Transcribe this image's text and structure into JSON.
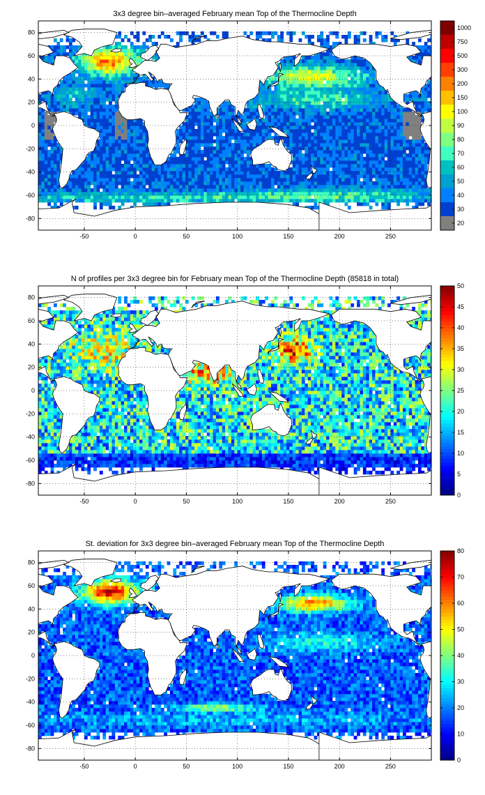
{
  "chart_data": [
    {
      "type": "heatmap",
      "title": "3x3 degree bin–averaged February mean Top of the Thermocline Depth",
      "xlim": [
        -95,
        290
      ],
      "ylim": [
        -90,
        90
      ],
      "xticks": [
        "-50",
        "0",
        "50",
        "100",
        "150",
        "200",
        "250"
      ],
      "xtick_values": [
        -50,
        0,
        50,
        100,
        150,
        200,
        250
      ],
      "yticks": [
        "80",
        "60",
        "40",
        "20",
        "0",
        "-20",
        "-40",
        "-60",
        "-80"
      ],
      "ytick_values": [
        80,
        60,
        40,
        20,
        0,
        -20,
        -40,
        -60,
        -80
      ],
      "grid": "dotted",
      "colorbar": {
        "labels": [
          "1000",
          "750",
          "500",
          "300",
          "200",
          "150",
          "100",
          "90",
          "80",
          "70",
          "60",
          "50",
          "40",
          "30",
          "20"
        ],
        "colors": [
          "#800000",
          "#c00000",
          "#ff0000",
          "#ff4000",
          "#ff8000",
          "#ffc000",
          "#ffff00",
          "#c0ff40",
          "#80ff80",
          "#40ffc0",
          "#00c0c0",
          "#00a0d0",
          "#0080ff",
          "#0040d0",
          "#808080"
        ]
      },
      "field": "depth"
    },
    {
      "type": "heatmap",
      "title": "N of profiles per 3x3 degree bin for February mean Top of the Thermocline Depth  (85818 in total)",
      "xlim": [
        -95,
        290
      ],
      "ylim": [
        -90,
        90
      ],
      "xticks": [
        "-50",
        "0",
        "50",
        "100",
        "150",
        "200",
        "250"
      ],
      "xtick_values": [
        -50,
        0,
        50,
        100,
        150,
        200,
        250
      ],
      "yticks": [
        "80",
        "60",
        "40",
        "20",
        "0",
        "-20",
        "-40",
        "-60",
        "-80"
      ],
      "ytick_values": [
        80,
        60,
        40,
        20,
        0,
        -20,
        -40,
        -60,
        -80
      ],
      "grid": "dotted",
      "colorbar": {
        "min": 0,
        "max": 50,
        "labels": [
          "50",
          "45",
          "40",
          "35",
          "30",
          "25",
          "20",
          "15",
          "10",
          "5",
          "0"
        ],
        "label_values": [
          50,
          45,
          40,
          35,
          30,
          25,
          20,
          15,
          10,
          5,
          0
        ],
        "colormap": "jet"
      },
      "field": "count"
    },
    {
      "type": "heatmap",
      "title": "St. deviation for 3x3 degree bin–averaged February mean Top of the Thermocline Depth",
      "xlim": [
        -95,
        290
      ],
      "ylim": [
        -90,
        90
      ],
      "xticks": [
        "-50",
        "0",
        "50",
        "100",
        "150",
        "200",
        "250"
      ],
      "xtick_values": [
        -50,
        0,
        50,
        100,
        150,
        200,
        250
      ],
      "yticks": [
        "80",
        "60",
        "40",
        "20",
        "0",
        "-20",
        "-40",
        "-60",
        "-80"
      ],
      "ytick_values": [
        80,
        60,
        40,
        20,
        0,
        -20,
        -40,
        -60,
        -80
      ],
      "grid": "dotted",
      "colorbar": {
        "min": 0,
        "max": 80,
        "labels": [
          "80",
          "70",
          "60",
          "50",
          "40",
          "30",
          "20",
          "10",
          "0"
        ],
        "label_values": [
          80,
          70,
          60,
          50,
          40,
          30,
          20,
          10,
          0
        ],
        "colormap": "jet"
      },
      "field": "std"
    }
  ]
}
